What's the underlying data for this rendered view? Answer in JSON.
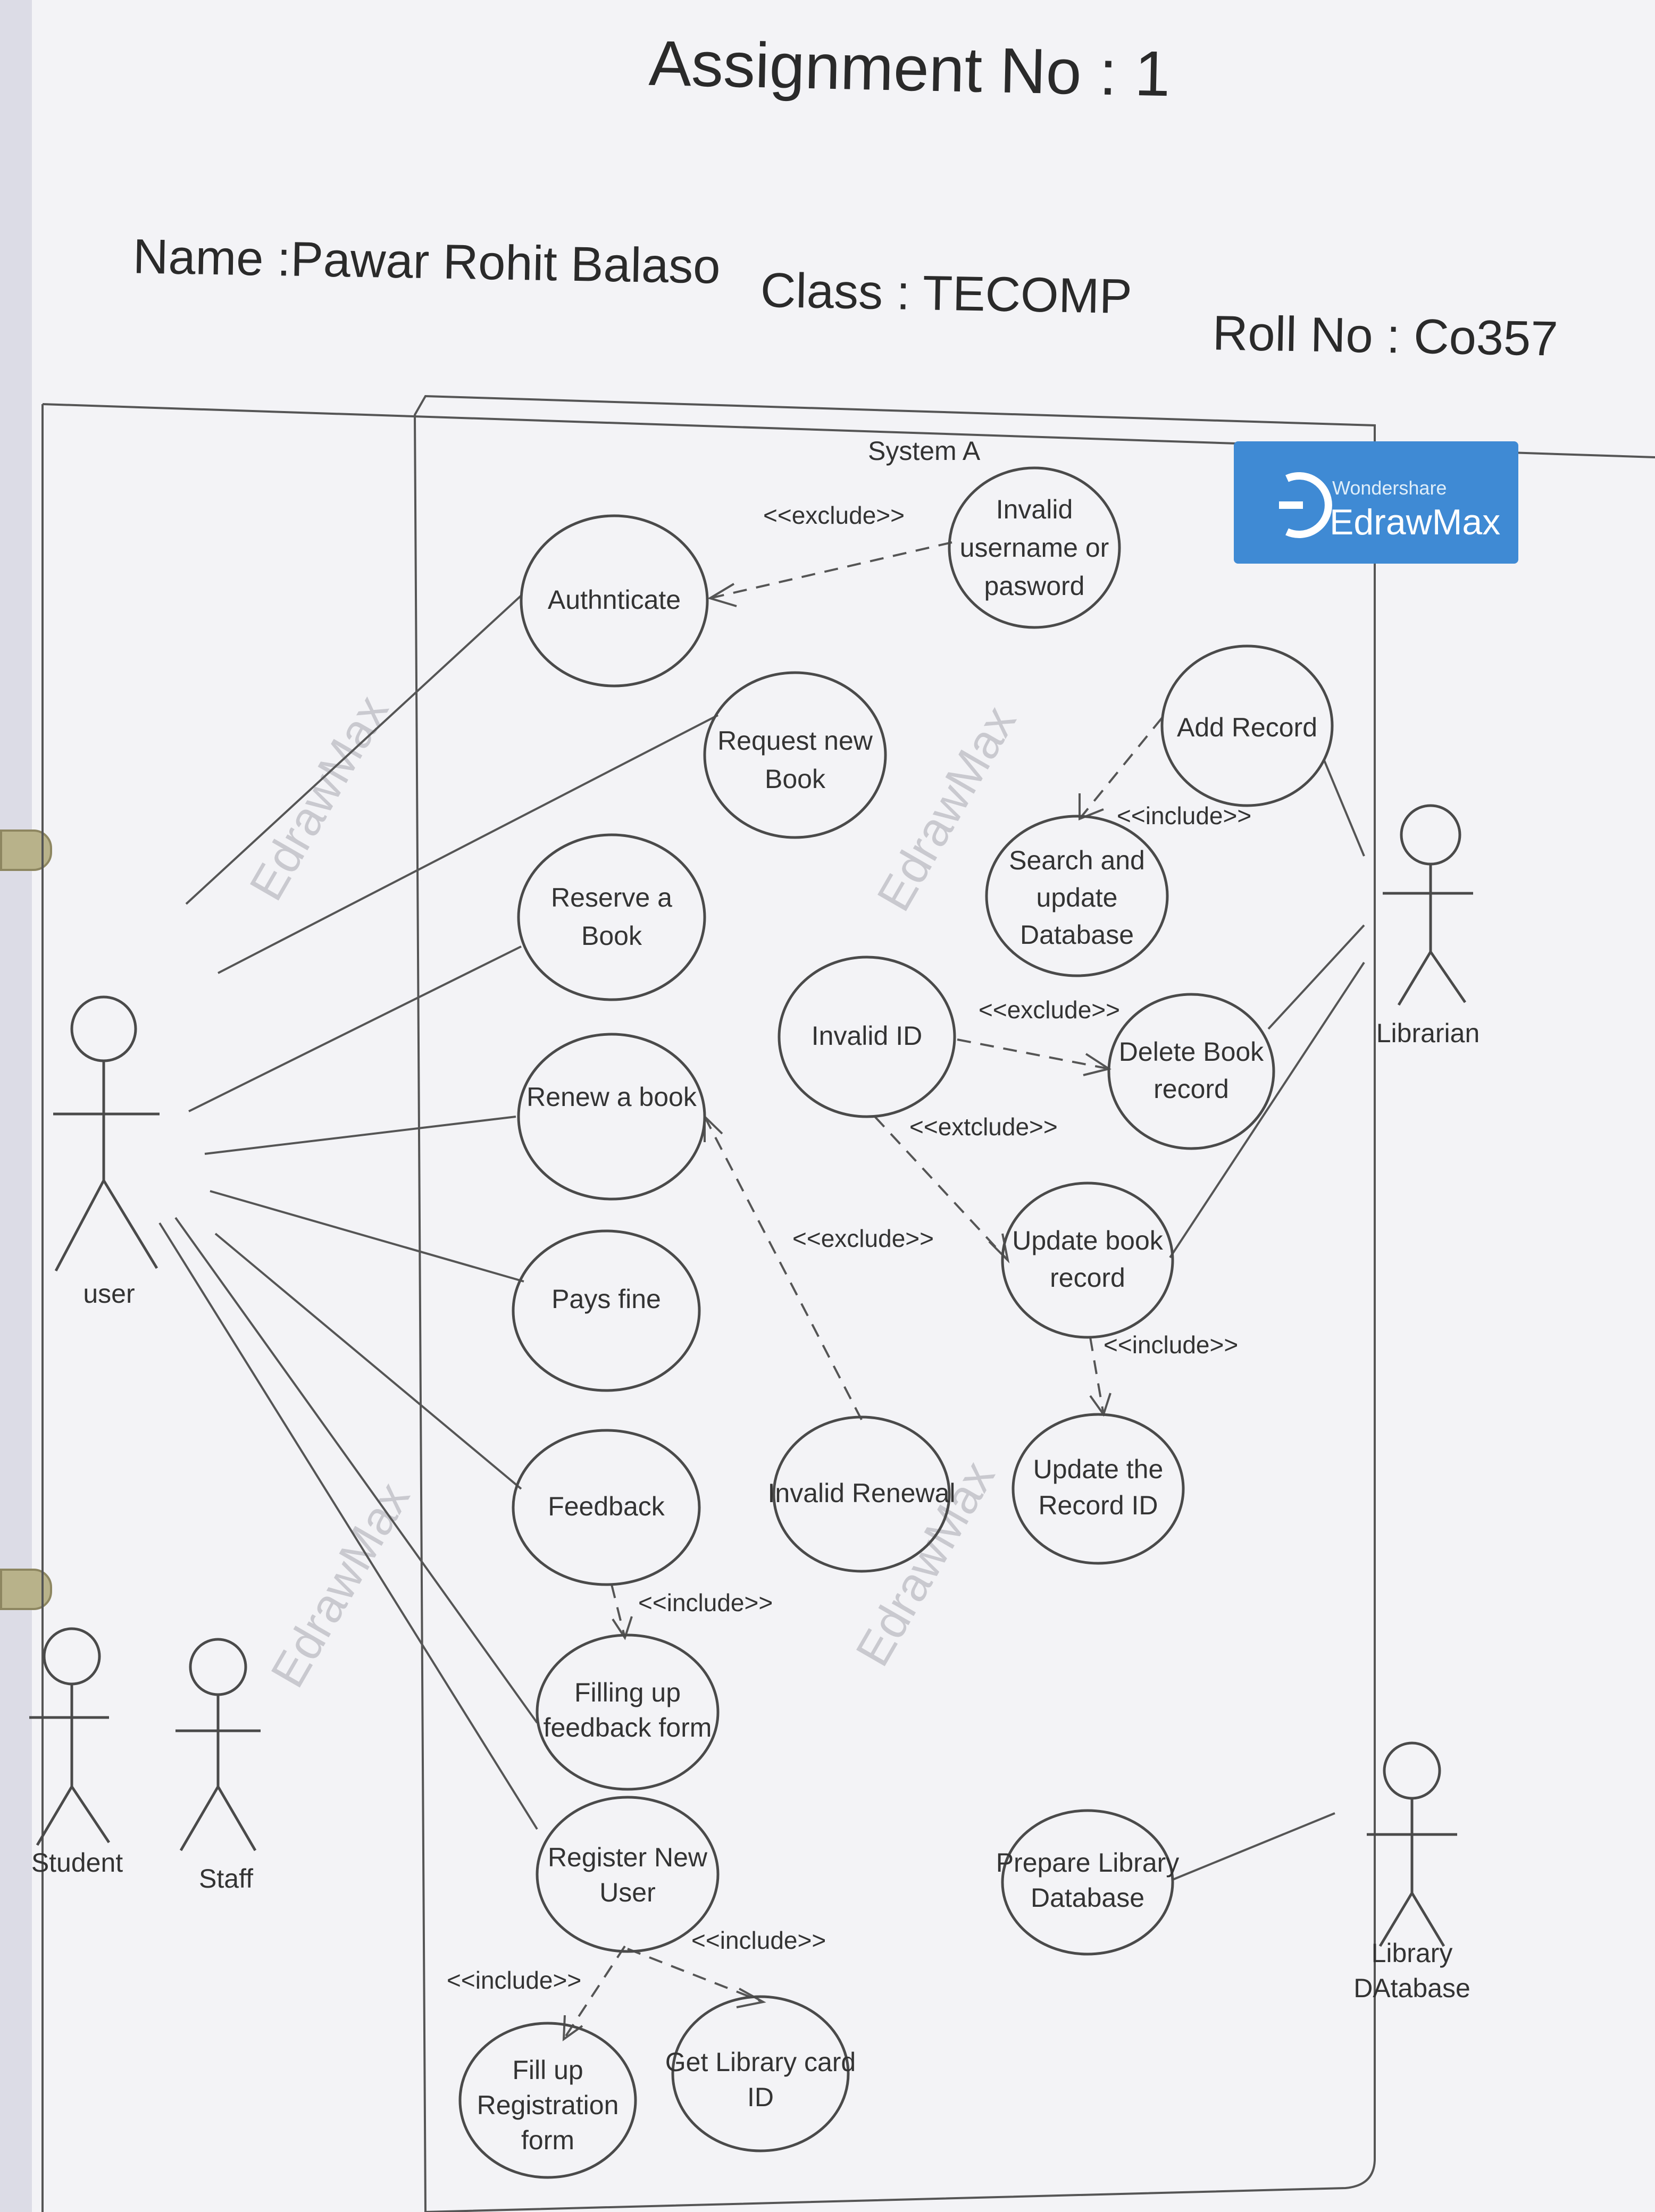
{
  "header": {
    "title": "Assignment No : 1",
    "name": "Name :Pawar Rohit Balaso",
    "class": "Class : TECOMP",
    "roll": "Roll No : Co357"
  },
  "diagram": {
    "system_label": "System A",
    "logo": {
      "brand_small": "Wondershare",
      "brand": "EdrawMax",
      "color": "#3f8ad4"
    },
    "watermark": "EdrawMax",
    "actors": {
      "user": "user",
      "student": "Student",
      "staff": "Staff",
      "librarian": "Librarian",
      "library_db": [
        "Library",
        "DAtabase"
      ]
    },
    "use_cases": {
      "authenticate": [
        "Authnticate"
      ],
      "invalid_username": [
        "Invalid",
        "username or",
        "pasword"
      ],
      "request_book": [
        "Request new",
        "Book"
      ],
      "add_record": [
        "Add Record"
      ],
      "search_update": [
        "Search and",
        "update",
        "Database"
      ],
      "reserve_book": [
        "Reserve  a",
        "Book"
      ],
      "invalid_id": [
        "Invalid ID"
      ],
      "delete_book": [
        "Delete Book",
        "record"
      ],
      "renew_book": [
        "Renew a book"
      ],
      "update_book": [
        "Update book",
        "record"
      ],
      "pays_fine": [
        "Pays fine"
      ],
      "feedback": [
        "Feedback"
      ],
      "invalid_renewal": [
        "Invalid Renewal"
      ],
      "update_record_id": [
        "Update the",
        "Record ID"
      ],
      "filling_feedback": [
        "Filling up",
        "feedback form"
      ],
      "register_user": [
        "Register New",
        "User"
      ],
      "prepare_db": [
        "Prepare Library",
        "Database"
      ],
      "fill_registration": [
        "Fill up",
        "Registration",
        "form"
      ],
      "get_card": [
        "Get Library card",
        "ID"
      ]
    },
    "stereotypes": {
      "exclude_auth": "<<exclude>>",
      "include_add": "<<include>>",
      "exclude_delete": "<<exclude>>",
      "extclude_update": "<<extclude>>",
      "exclude_renew": "<<exclude>>",
      "include_update": "<<include>>",
      "include_feedback": "<<include>>",
      "include_card": "<<include>>",
      "include_fill": "<<include>>"
    }
  }
}
